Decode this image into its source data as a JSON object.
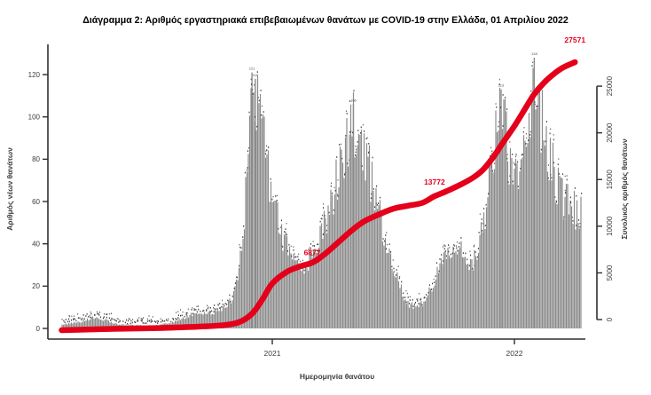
{
  "page": {
    "background": "#ffffff"
  },
  "chart_data": {
    "type": "bar+line",
    "title": "Διάγραμμα 2: Αριθμός εργαστηριακά επιβεβαιωμένων θανάτων με COVID-19 στην Ελλάδα, 01 Απριλίου 2022",
    "xlabel": "Ημερομηνία θανάτου",
    "ylabel_left": "Αριθμός νέων θανάτων",
    "ylabel_right": "Συνολικός αριθμός θανάτων",
    "x_tick_labels": [
      "2021",
      "2022"
    ],
    "x_tick_years": [
      2021,
      2022
    ],
    "y_left_ticks": [
      0,
      20,
      40,
      60,
      80,
      100,
      120
    ],
    "y_left_range": [
      0,
      130
    ],
    "y_right_ticks": [
      0,
      5000,
      10000,
      15000,
      20000,
      25000
    ],
    "y_right_range": [
      0,
      27571
    ],
    "x_range_decimal_years": [
      2020.13,
      2022.28
    ],
    "grid": false,
    "legend": "none",
    "colors": {
      "bars": "#8b8b8b",
      "bar_specks": "#3e3e3e",
      "line": "#e4001b",
      "axis": "#2e2e2e",
      "tick_text": "#3c3c3c",
      "title_text": "#000000"
    },
    "series": [
      {
        "name": "Αριθμός νέων θανάτων",
        "type": "bar",
        "unit": "deaths per day",
        "envelope_points": [
          [
            2020.14,
            2
          ],
          [
            2020.2,
            3
          ],
          [
            2020.26,
            5
          ],
          [
            2020.31,
            4
          ],
          [
            2020.36,
            2
          ],
          [
            2020.44,
            1.5
          ],
          [
            2020.52,
            1.5
          ],
          [
            2020.58,
            2.5
          ],
          [
            2020.63,
            5
          ],
          [
            2020.68,
            7
          ],
          [
            2020.72,
            7
          ],
          [
            2020.76,
            8
          ],
          [
            2020.8,
            10
          ],
          [
            2020.83,
            14
          ],
          [
            2020.86,
            24
          ],
          [
            2020.88,
            45
          ],
          [
            2020.9,
            78
          ],
          [
            2020.915,
            112
          ],
          [
            2020.93,
            115
          ],
          [
            2020.945,
            106
          ],
          [
            2020.96,
            98
          ],
          [
            2020.98,
            80
          ],
          [
            2021.0,
            62
          ],
          [
            2021.03,
            48
          ],
          [
            2021.06,
            38
          ],
          [
            2021.09,
            30
          ],
          [
            2021.12,
            27
          ],
          [
            2021.15,
            32
          ],
          [
            2021.18,
            40
          ],
          [
            2021.21,
            48
          ],
          [
            2021.24,
            58
          ],
          [
            2021.27,
            72
          ],
          [
            2021.3,
            88
          ],
          [
            2021.33,
            98
          ],
          [
            2021.36,
            90
          ],
          [
            2021.39,
            80
          ],
          [
            2021.42,
            66
          ],
          [
            2021.45,
            52
          ],
          [
            2021.48,
            38
          ],
          [
            2021.51,
            26
          ],
          [
            2021.54,
            16
          ],
          [
            2021.57,
            11
          ],
          [
            2021.6,
            10
          ],
          [
            2021.63,
            13
          ],
          [
            2021.66,
            20
          ],
          [
            2021.69,
            28
          ],
          [
            2021.72,
            36
          ],
          [
            2021.75,
            40
          ],
          [
            2021.78,
            36
          ],
          [
            2021.81,
            32
          ],
          [
            2021.84,
            34
          ],
          [
            2021.86,
            42
          ],
          [
            2021.88,
            55
          ],
          [
            2021.9,
            72
          ],
          [
            2021.92,
            90
          ],
          [
            2021.94,
            105
          ],
          [
            2021.955,
            98
          ],
          [
            2021.97,
            88
          ],
          [
            2021.985,
            76
          ],
          [
            2022.0,
            70
          ],
          [
            2022.02,
            78
          ],
          [
            2022.04,
            92
          ],
          [
            2022.06,
            105
          ],
          [
            2022.08,
            118
          ],
          [
            2022.095,
            110
          ],
          [
            2022.11,
            100
          ],
          [
            2022.13,
            90
          ],
          [
            2022.15,
            80
          ],
          [
            2022.17,
            72
          ],
          [
            2022.19,
            64
          ],
          [
            2022.21,
            60
          ],
          [
            2022.23,
            64
          ],
          [
            2022.25,
            57
          ],
          [
            2022.27,
            54
          ]
        ]
      },
      {
        "name": "Συνολικός αριθμός θανάτων",
        "type": "line",
        "unit": "cumulative deaths",
        "points": [
          [
            2020.13,
            0
          ],
          [
            2020.3,
            120
          ],
          [
            2020.5,
            200
          ],
          [
            2020.66,
            330
          ],
          [
            2020.8,
            520
          ],
          [
            2020.87,
            900
          ],
          [
            2020.92,
            1800
          ],
          [
            2020.96,
            3200
          ],
          [
            2021.0,
            4800
          ],
          [
            2021.06,
            6000
          ],
          [
            2021.12,
            6600
          ],
          [
            2021.17,
            7000
          ],
          [
            2021.22,
            7900
          ],
          [
            2021.28,
            9200
          ],
          [
            2021.33,
            10300
          ],
          [
            2021.38,
            11200
          ],
          [
            2021.44,
            11900
          ],
          [
            2021.5,
            12500
          ],
          [
            2021.56,
            12800
          ],
          [
            2021.62,
            13100
          ],
          [
            2021.67,
            13772
          ],
          [
            2021.72,
            14300
          ],
          [
            2021.78,
            15000
          ],
          [
            2021.83,
            15700
          ],
          [
            2021.87,
            16500
          ],
          [
            2021.91,
            17700
          ],
          [
            2021.95,
            19200
          ],
          [
            2022.0,
            21000
          ],
          [
            2022.04,
            22600
          ],
          [
            2022.08,
            24200
          ],
          [
            2022.12,
            25400
          ],
          [
            2022.16,
            26300
          ],
          [
            2022.2,
            27000
          ],
          [
            2022.25,
            27571
          ]
        ]
      }
    ],
    "annotations": [
      {
        "label": "6877",
        "t": 2021.165,
        "value": 6877,
        "dy": -9
      },
      {
        "label": "13772",
        "t": 2021.67,
        "value": 13772,
        "dy": -13
      },
      {
        "label": "27571",
        "t": 2022.25,
        "value": 27571,
        "dy": -22
      }
    ],
    "peak_bar_labels": [
      {
        "label": "121",
        "t": 2020.916,
        "value": 121
      },
      {
        "label": "118",
        "t": 2020.93,
        "value": 118
      },
      {
        "label": "106",
        "t": 2021.335,
        "value": 106
      },
      {
        "label": "113",
        "t": 2021.945,
        "value": 113
      },
      {
        "label": "128",
        "t": 2022.082,
        "value": 128
      }
    ]
  }
}
